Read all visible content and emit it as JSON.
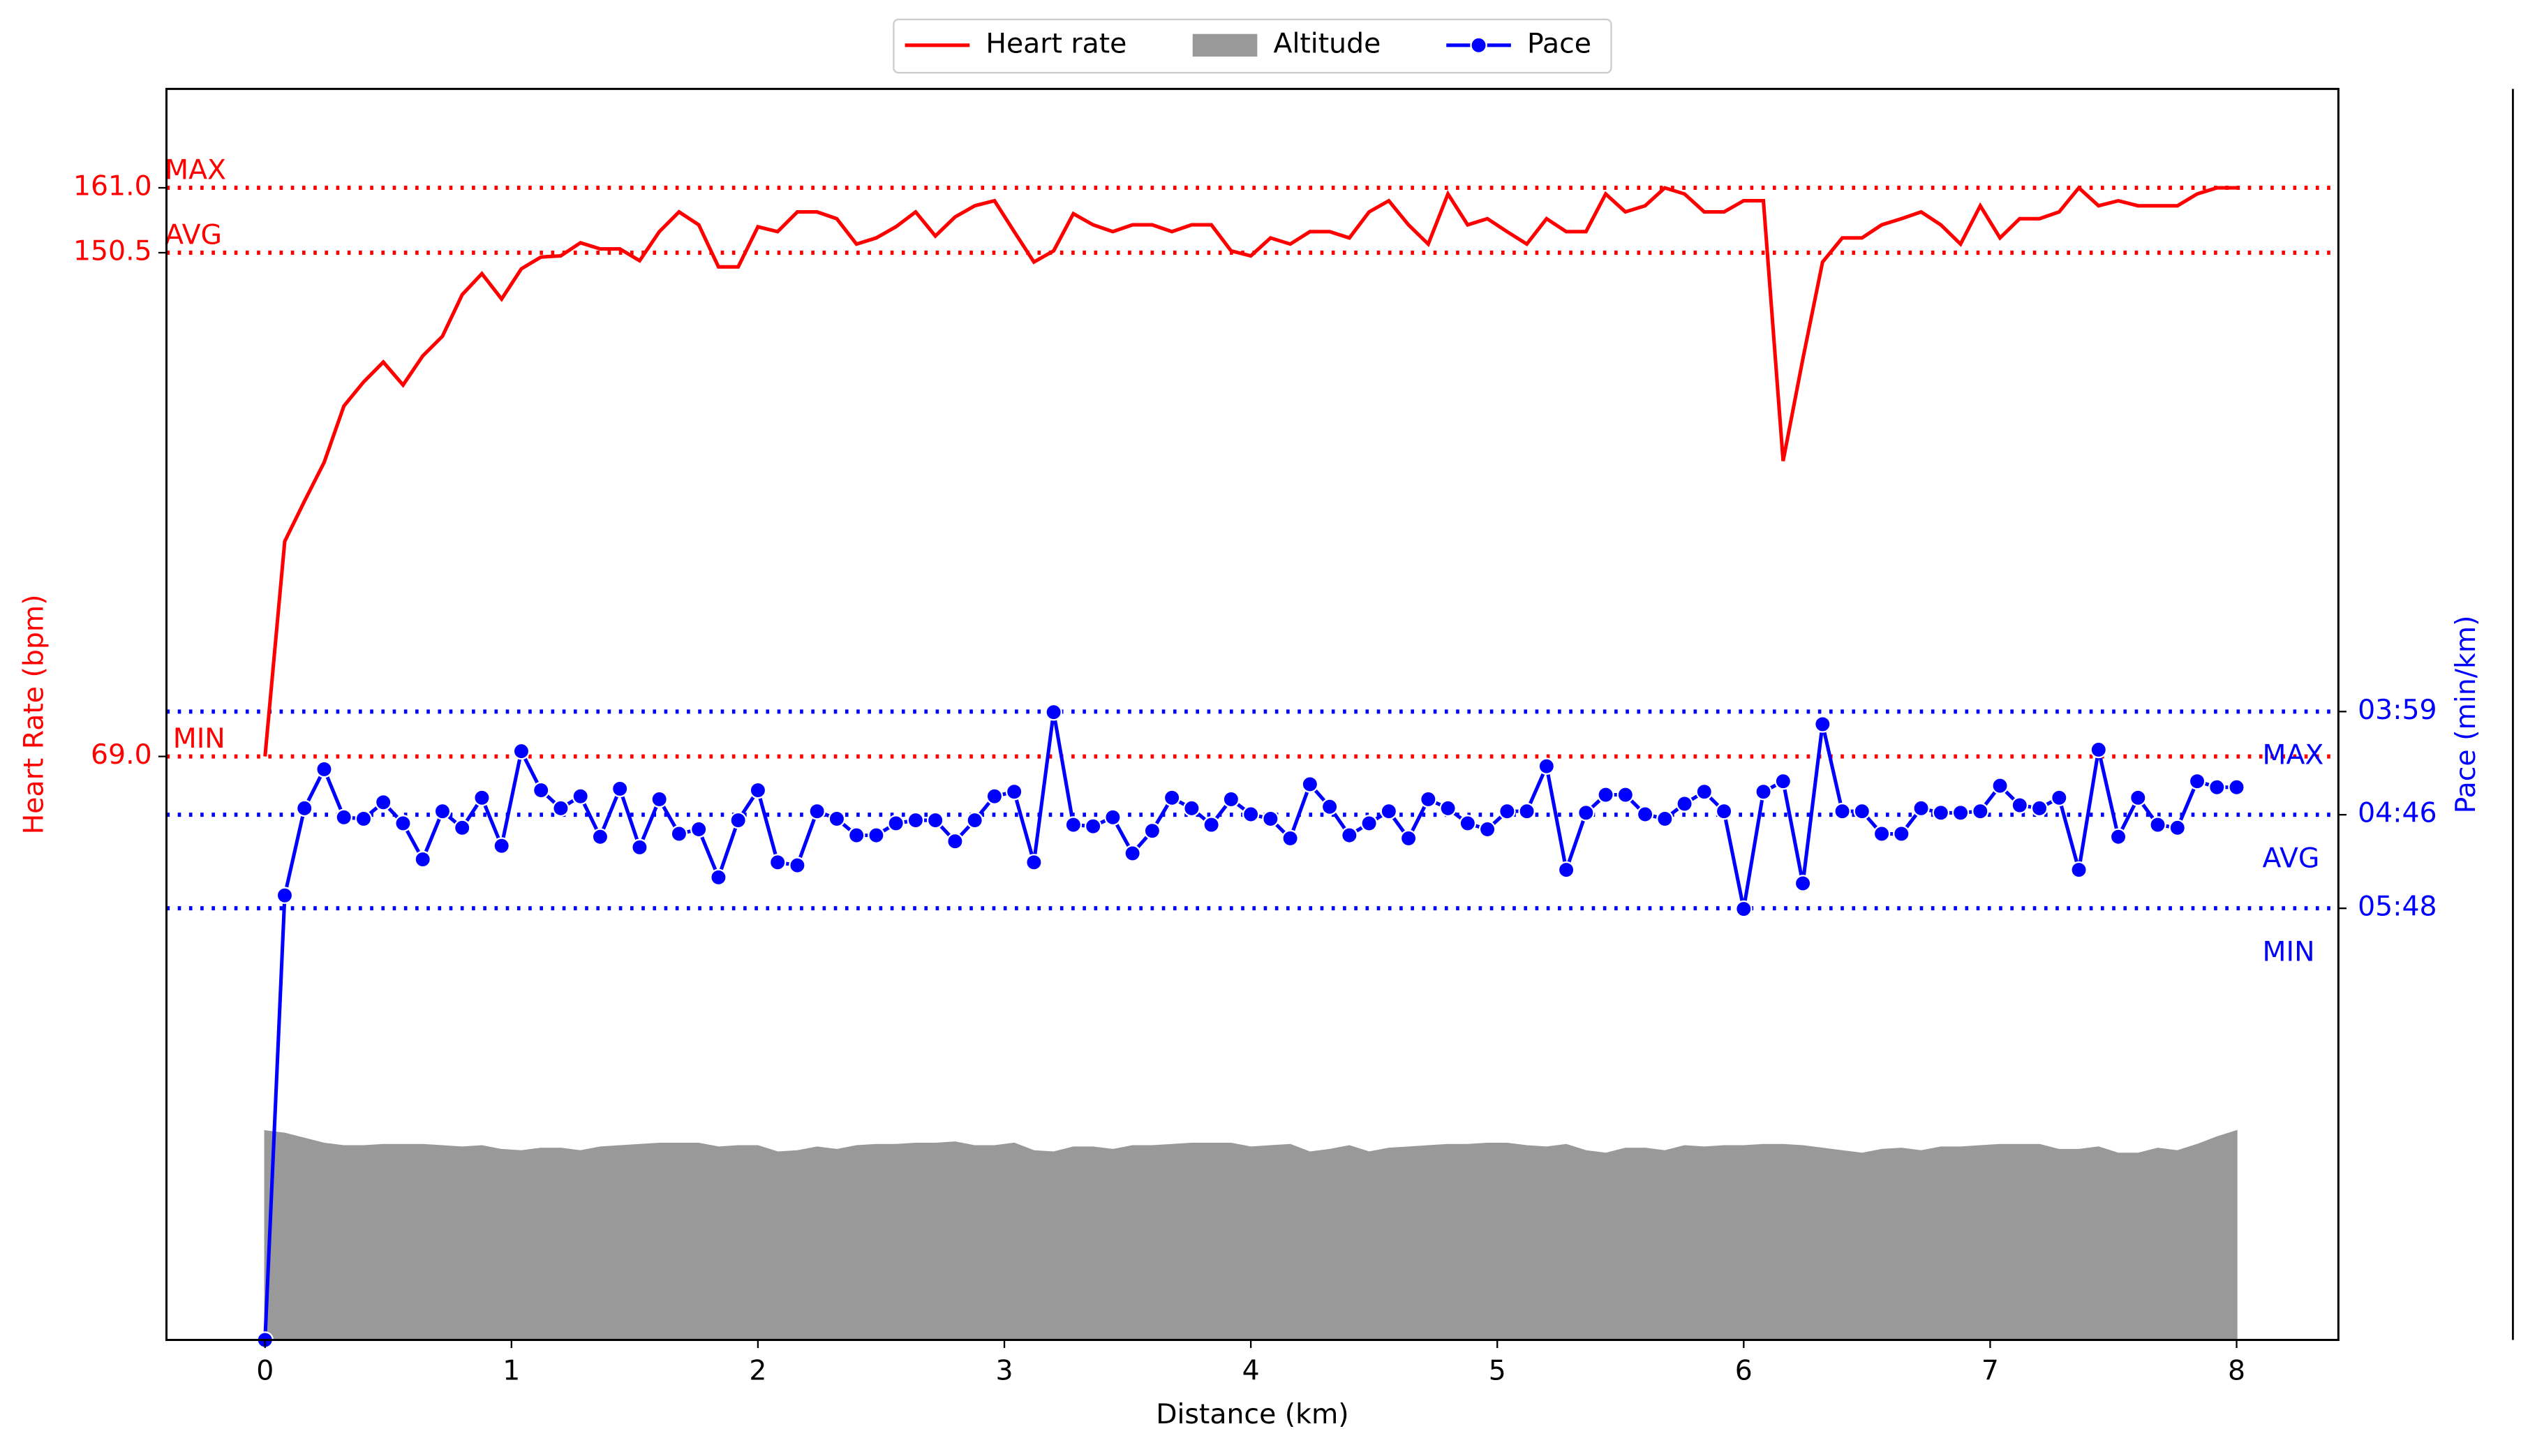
{
  "chart_data": {
    "type": "line",
    "xlabel": "Distance (km)",
    "ylabel": "Heart Rate (bpm)",
    "y2label": "Pace (min/km)",
    "xlim": [
      -0.4,
      8.413
    ],
    "xticks": [
      0,
      1,
      2,
      3,
      4,
      5,
      6,
      7,
      8
    ],
    "ylim": [
      -25.4,
      177.0
    ],
    "yticks": [
      {
        "value": 69.0,
        "label": "69.0"
      },
      {
        "value": 150.5,
        "label": "150.5"
      },
      {
        "value": 161.0,
        "label": "161.0"
      }
    ],
    "y2lim": [
      0,
      8.33
    ],
    "y2ticks": [
      {
        "value": 4.184,
        "label": "03:59"
      },
      {
        "value": 3.497,
        "label": "04:46"
      },
      {
        "value": 2.874,
        "label": "05:48"
      }
    ],
    "y3lim": [
      0,
      100
    ],
    "grid": "dotted",
    "legend": "upper center",
    "annotations": [
      {
        "text": "MAX",
        "value": 161.0,
        "axis": "y",
        "color": "red"
      },
      {
        "text": "AVG",
        "value": 150.5,
        "axis": "y",
        "color": "red"
      },
      {
        "text": "MIN",
        "value": 69.0,
        "axis": "y",
        "color": "red"
      },
      {
        "text": "MAX",
        "value": 4.184,
        "axis": "y2",
        "color": "blue"
      },
      {
        "text": "AVG",
        "value": 3.497,
        "axis": "y2",
        "color": "blue"
      },
      {
        "text": "MIN",
        "value": 2.874,
        "axis": "y2",
        "color": "blue"
      }
    ],
    "x": [
      0,
      0.08,
      0.16,
      0.24,
      0.32,
      0.4,
      0.48,
      0.56,
      0.64,
      0.72,
      0.8,
      0.88,
      0.96,
      1.04,
      1.12,
      1.2,
      1.28,
      1.36,
      1.44,
      1.52,
      1.6,
      1.68,
      1.76,
      1.84,
      1.92,
      2,
      2.08,
      2.16,
      2.24,
      2.32,
      2.4,
      2.48,
      2.56,
      2.64,
      2.72,
      2.8,
      2.88,
      2.96,
      3.04,
      3.12,
      3.2,
      3.28,
      3.36,
      3.44,
      3.52,
      3.6,
      3.68,
      3.76,
      3.84,
      3.92,
      4,
      4.08,
      4.16,
      4.24,
      4.32,
      4.4,
      4.48,
      4.56,
      4.64,
      4.72,
      4.8,
      4.88,
      4.96,
      5.04,
      5.12,
      5.2,
      5.28,
      5.36,
      5.44,
      5.52,
      5.6,
      5.68,
      5.76,
      5.84,
      5.92,
      6,
      6.08,
      6.16,
      6.24,
      6.32,
      6.4,
      6.48,
      6.56,
      6.64,
      6.72,
      6.8,
      6.88,
      6.96,
      7.04,
      7.12,
      7.2,
      7.28,
      7.36,
      7.44,
      7.52,
      7.6,
      7.68,
      7.76,
      7.84,
      7.92,
      8
    ],
    "series": [
      {
        "name": "Heart rate",
        "type": "line",
        "color": "#ff0000",
        "axis": "y",
        "values": [
          69,
          103.8,
          110.3,
          116.6,
          125.7,
          129.6,
          132.8,
          129.1,
          133.8,
          137.0,
          143.7,
          147.1,
          143.0,
          147.9,
          149.8,
          150.0,
          152.1,
          151.1,
          151.1,
          149.2,
          153.9,
          157.1,
          155.0,
          148.2,
          148.2,
          154.7,
          153.9,
          157.1,
          157.1,
          156.0,
          151.9,
          152.9,
          154.7,
          157.1,
          153.2,
          156.3,
          158.1,
          158.9,
          153.9,
          149.0,
          150.8,
          156.8,
          155.0,
          153.9,
          155.0,
          155.0,
          153.9,
          155.0,
          155.0,
          150.8,
          150.0,
          152.9,
          151.9,
          153.9,
          153.9,
          152.9,
          157.1,
          158.9,
          155.0,
          151.9,
          160.0,
          155.0,
          156.0,
          153.9,
          151.9,
          156.0,
          153.9,
          153.9,
          160.0,
          157.1,
          158.1,
          161.0,
          160.0,
          157.1,
          157.1,
          158.9,
          158.9,
          116.8,
          133.3,
          149.0,
          152.9,
          152.9,
          155.0,
          156.0,
          157.1,
          155.0,
          151.9,
          158.1,
          152.9,
          156.0,
          156.0,
          157.1,
          161.0,
          158.1,
          158.9,
          158.1,
          158.1,
          158.1,
          160.0,
          161.0,
          161.0
        ]
      },
      {
        "name": "Altitude",
        "type": "area",
        "color": "#999999",
        "axis": "y3",
        "values": [
          16.7,
          16.5,
          16.1,
          15.7,
          15.5,
          15.5,
          15.6,
          15.6,
          15.6,
          15.5,
          15.4,
          15.5,
          15.2,
          15.1,
          15.3,
          15.3,
          15.1,
          15.4,
          15.5,
          15.6,
          15.7,
          15.7,
          15.7,
          15.4,
          15.5,
          15.5,
          15.0,
          15.1,
          15.4,
          15.2,
          15.5,
          15.6,
          15.6,
          15.7,
          15.7,
          15.8,
          15.5,
          15.5,
          15.7,
          15.1,
          15.0,
          15.4,
          15.4,
          15.2,
          15.5,
          15.5,
          15.6,
          15.7,
          15.7,
          15.7,
          15.4,
          15.5,
          15.6,
          15.0,
          15.2,
          15.5,
          15.0,
          15.3,
          15.4,
          15.5,
          15.6,
          15.6,
          15.7,
          15.7,
          15.5,
          15.4,
          15.6,
          15.1,
          14.9,
          15.3,
          15.3,
          15.1,
          15.5,
          15.4,
          15.5,
          15.5,
          15.6,
          15.6,
          15.5,
          15.3,
          15.1,
          14.9,
          15.2,
          15.3,
          15.1,
          15.4,
          15.4,
          15.5,
          15.6,
          15.6,
          15.6,
          15.2,
          15.2,
          15.4,
          14.9,
          14.9,
          15.3,
          15.1,
          15.6,
          16.2,
          16.7
        ]
      },
      {
        "name": "Pace",
        "type": "line",
        "marker": "o",
        "color": "#0000ff",
        "axis": "y2",
        "values": [
          0,
          2.96,
          3.54,
          3.8,
          3.48,
          3.47,
          3.58,
          3.44,
          3.2,
          3.52,
          3.41,
          3.61,
          3.29,
          3.92,
          3.66,
          3.54,
          3.62,
          3.35,
          3.67,
          3.28,
          3.6,
          3.37,
          3.4,
          3.08,
          3.46,
          3.66,
          3.18,
          3.16,
          3.52,
          3.47,
          3.36,
          3.36,
          3.44,
          3.46,
          3.46,
          3.32,
          3.46,
          3.62,
          3.65,
          3.18,
          4.18,
          3.43,
          3.42,
          3.48,
          3.24,
          3.39,
          3.61,
          3.54,
          3.43,
          3.6,
          3.5,
          3.47,
          3.34,
          3.7,
          3.55,
          3.36,
          3.44,
          3.52,
          3.34,
          3.6,
          3.54,
          3.44,
          3.4,
          3.52,
          3.52,
          3.82,
          3.13,
          3.51,
          3.63,
          3.63,
          3.5,
          3.47,
          3.57,
          3.65,
          3.52,
          2.87,
          3.65,
          3.72,
          3.04,
          4.1,
          3.52,
          3.52,
          3.37,
          3.37,
          3.54,
          3.51,
          3.51,
          3.52,
          3.69,
          3.56,
          3.54,
          3.61,
          3.13,
          3.93,
          3.35,
          3.61,
          3.43,
          3.41,
          3.72,
          3.68,
          3.68
        ]
      }
    ]
  }
}
